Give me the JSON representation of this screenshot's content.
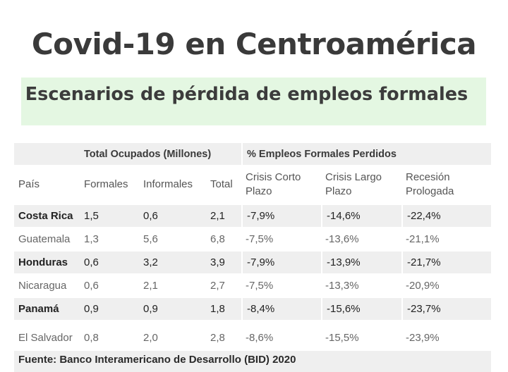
{
  "title": "Covid-19 en Centroamérica",
  "subtitle": "Escenarios de pérdida de empleos formales",
  "table": {
    "group_headers": {
      "ocupados": "Total Ocupados (Millones)",
      "perdidos": "% Empleos Formales Perdidos"
    },
    "columns": [
      "País",
      "Formales",
      "Informales",
      "Total",
      "Crisis Corto Plazo",
      "Crisis Largo Plazo",
      "Recesión Prologada"
    ],
    "rows": [
      [
        "Costa Rica",
        "1,5",
        "0,6",
        "2,1",
        "-7,9%",
        "-14,6%",
        "-22,4%"
      ],
      [
        "Guatemala",
        "1,3",
        "5,6",
        "6,8",
        "-7,5%",
        "-13,6%",
        "-21,1%"
      ],
      [
        "Honduras",
        "0,6",
        "3,2",
        "3,9",
        "-7,9%",
        "-13,9%",
        "-21,7%"
      ],
      [
        "Nicaragua",
        "0,6",
        "2,1",
        "2,7",
        "-7,5%",
        "-13,3%",
        "-20,9%"
      ],
      [
        "Panamá",
        "0,9",
        "0,9",
        "1,8",
        "-8,4%",
        "-15,6%",
        "-23,7%"
      ],
      [
        "El Salvador",
        "0,8",
        "2,0",
        "2,8",
        "-8,6%",
        "-15,5%",
        "-23,9%"
      ]
    ]
  },
  "source": "Fuente: Banco Interamericano de Desarrollo (BID) 2020",
  "colors": {
    "subtitle_bg": "#e4f7e2",
    "row_shade": "#efefef",
    "text_dark": "#3a3a3a"
  }
}
